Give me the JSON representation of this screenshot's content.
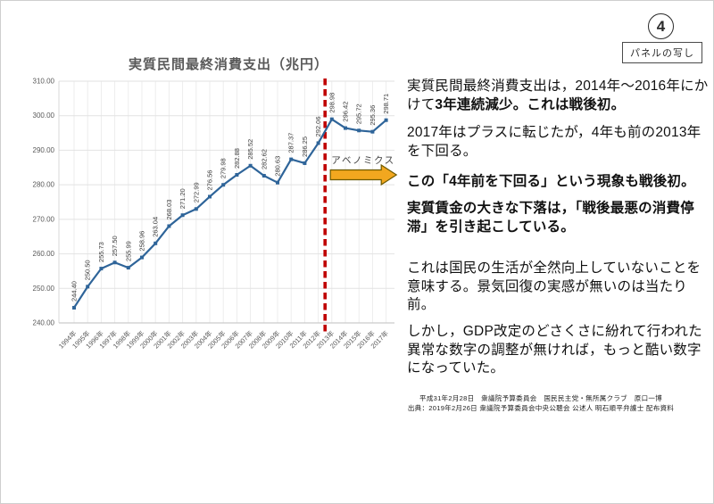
{
  "page": {
    "corner_number": "4",
    "corner_label": "パネルの写し"
  },
  "chart_data": {
    "type": "line",
    "title": "実質民間最終消費支出（兆円）",
    "categories": [
      "1994年",
      "1995年",
      "1996年",
      "1997年",
      "1998年",
      "1999年",
      "2000年",
      "2001年",
      "2002年",
      "2003年",
      "2004年",
      "2005年",
      "2006年",
      "2007年",
      "2008年",
      "2009年",
      "2010年",
      "2011年",
      "2012年",
      "2013年",
      "2014年",
      "2015年",
      "2016年",
      "2017年"
    ],
    "values": [
      244.4,
      250.5,
      255.73,
      257.5,
      255.99,
      258.96,
      263.04,
      268.03,
      271.2,
      272.99,
      276.56,
      279.98,
      282.88,
      285.52,
      282.62,
      280.63,
      287.37,
      286.25,
      292.06,
      298.98,
      296.42,
      295.72,
      295.36,
      298.71
    ],
    "ylim": [
      240,
      310
    ],
    "ytick_step": 10,
    "grid": true,
    "legend": "none",
    "line_color": "#2e6499",
    "label_color": "#3f3f3f",
    "axis_color": "#595959",
    "annotation": {
      "label": "アベノミクス",
      "divider_after_category": "2012年",
      "divider_color": "#c00000",
      "arrow_fill": "#f2a71f",
      "arrow_stroke": "#6e5a00"
    }
  },
  "panel": {
    "paragraphs": [
      {
        "parts": [
          {
            "text": "実質民間最終消費支出は，2014年～2016年にかけて",
            "bold": false
          },
          {
            "text": "3年連続減少。これは戦後初。",
            "bold": true
          }
        ]
      },
      {
        "parts": [
          {
            "text": "2017年はプラスに転じたが，4年も前の2013年を下回る。",
            "bold": false
          }
        ]
      },
      {
        "parts": [
          {
            "text": "この「4年前を下回る」という現象も戦後初。",
            "bold": true
          }
        ]
      },
      {
        "parts": [
          {
            "text": "実質賃金の大きな下落は，「戦後最悪の消費停滞」を引き起こしている。",
            "bold": true
          }
        ]
      },
      {
        "parts": [
          {
            "text": "これは国民の生活が全然向上していないことを意味する。景気回復の実感が無いのは当たり前。",
            "bold": false
          }
        ]
      },
      {
        "parts": [
          {
            "text": "しかし，GDP改定のどさくさに紛れて行われた異常な数字の調整が無ければ，もっと酷い数字になっていた。",
            "bold": false
          }
        ]
      }
    ]
  },
  "footer": {
    "line1": "平成31年2月28日　衆議院予算委員会　国民民主党・無所属クラブ　原口一博",
    "line2": "出典：2019年2月26日 衆議院予算委員会中央公聴会 公述人 明石順平弁護士 配布資料"
  }
}
